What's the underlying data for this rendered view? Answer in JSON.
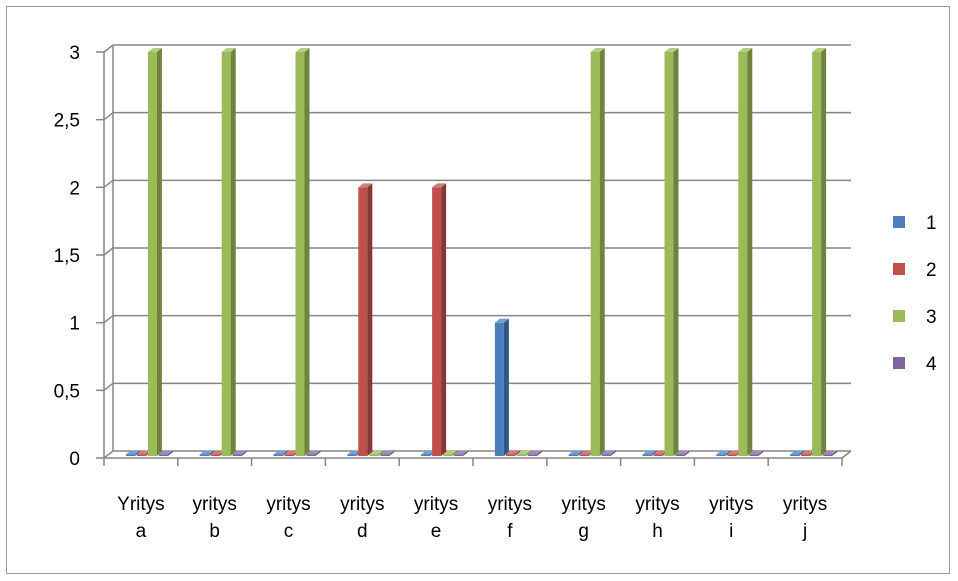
{
  "chart_data": {
    "type": "bar",
    "style": "3d-clustered-column",
    "categories": [
      [
        "Yritys",
        "a"
      ],
      [
        "yritys",
        "b"
      ],
      [
        "yritys",
        "c"
      ],
      [
        "yritys",
        "d"
      ],
      [
        "yritys",
        "e"
      ],
      [
        "yritys",
        "f"
      ],
      [
        "yritys",
        "g"
      ],
      [
        "yritys",
        "h"
      ],
      [
        "yritys",
        "i"
      ],
      [
        "yritys",
        "j"
      ]
    ],
    "series": [
      {
        "name": "1",
        "color": "#4a7ebf",
        "values": [
          0,
          0,
          0,
          0,
          0,
          1,
          0,
          0,
          0,
          0
        ]
      },
      {
        "name": "2",
        "color": "#c0504d",
        "values": [
          0,
          0,
          0,
          2,
          2,
          0,
          0,
          0,
          0,
          0
        ]
      },
      {
        "name": "3",
        "color": "#9bbb59",
        "values": [
          3,
          3,
          3,
          0,
          0,
          0,
          3,
          3,
          3,
          3
        ]
      },
      {
        "name": "4",
        "color": "#8064a2",
        "values": [
          0,
          0,
          0,
          0,
          0,
          0,
          0,
          0,
          0,
          0
        ]
      }
    ],
    "yticks": [
      "0",
      "0,5",
      "1",
      "1,5",
      "2",
      "2,5",
      "3"
    ],
    "ylim": [
      0,
      3
    ],
    "grid": true,
    "legend_position": "right"
  }
}
